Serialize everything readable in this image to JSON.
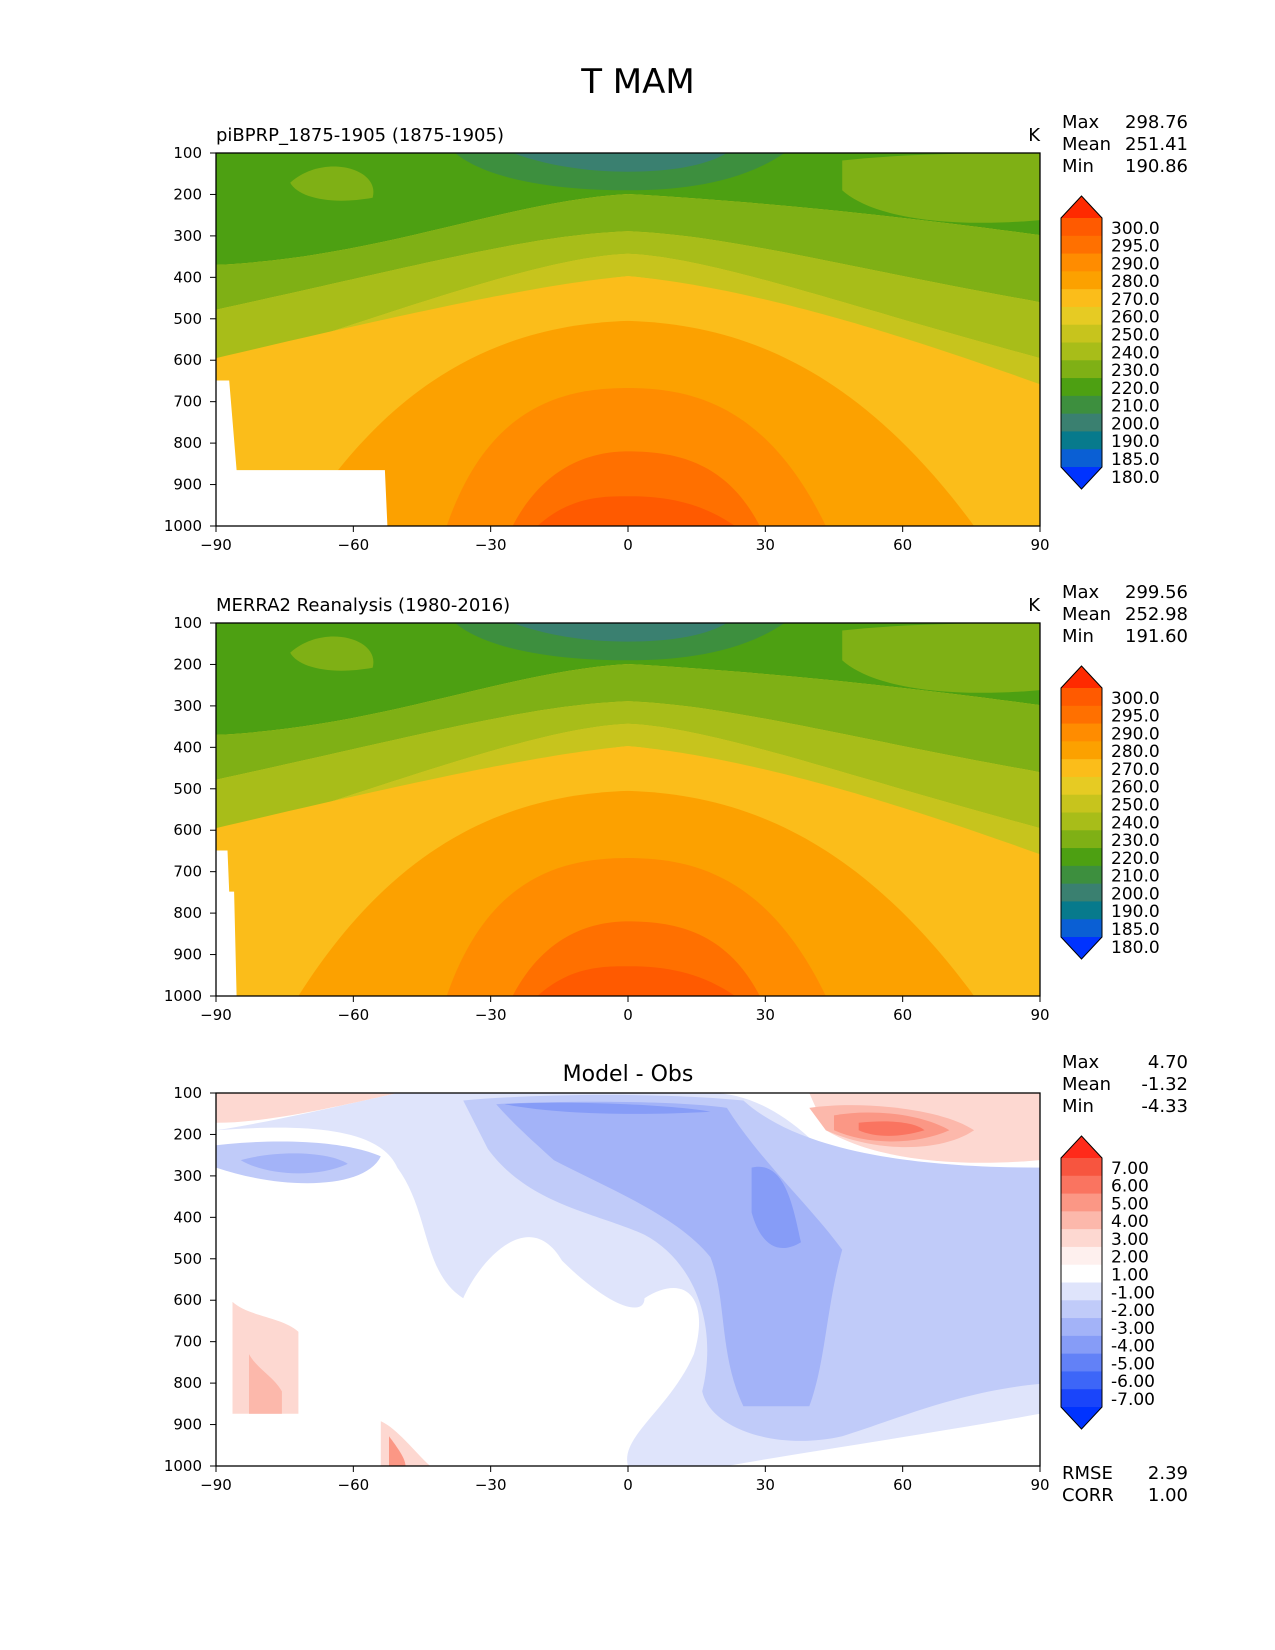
{
  "figure_title": "T MAM",
  "chart_data": [
    {
      "type": "contour",
      "title": "piBPRP_1875-1905 (1875-1905)",
      "units": "K",
      "xlim": [
        -90,
        90
      ],
      "ylim": [
        1000,
        100
      ],
      "xticks": [
        "−90",
        "−60",
        "−30",
        "0",
        "30",
        "60",
        "90"
      ],
      "yticks": [
        "100",
        "200",
        "300",
        "400",
        "500",
        "600",
        "700",
        "800",
        "900",
        "1000"
      ],
      "stats": [
        {
          "label": "Max",
          "value": "298.76"
        },
        {
          "label": "Mean",
          "value": "251.41"
        },
        {
          "label": "Min",
          "value": "190.86"
        }
      ],
      "colorbar": {
        "labels": [
          "300.0",
          "295.0",
          "290.0",
          "280.0",
          "270.0",
          "260.0",
          "250.0",
          "240.0",
          "230.0",
          "220.0",
          "210.0",
          "200.0",
          "190.0",
          "185.0",
          "180.0"
        ],
        "colors": [
          "#ff2a00",
          "#ff5a00",
          "#ff7000",
          "#ff8c00",
          "#fca100",
          "#fbbd1a",
          "#e6cb23",
          "#c7c41d",
          "#a8bd19",
          "#7fb015",
          "#4da012",
          "#3d8f3e",
          "#3a8070",
          "#077a8c",
          "#0a5fd4",
          "#0033ff"
        ],
        "ticks": [
          "300.0",
          "295.0",
          "290.0",
          "280.0",
          "270.0",
          "260.0",
          "250.0",
          "240.0",
          "230.0",
          "220.0",
          "210.0",
          "200.0",
          "190.0",
          "185.0",
          "180.0"
        ]
      },
      "profile": {
        "lat": [
          -90,
          -75,
          -60,
          -45,
          -30,
          -15,
          0,
          15,
          30,
          45,
          60,
          75,
          90
        ],
        "t1000": [
          null,
          null,
          null,
          273,
          280,
          291,
          296,
          291,
          284,
          278,
          268,
          257,
          253
        ],
        "t500": [
          240,
          241,
          247,
          254,
          259,
          264,
          266,
          264,
          259,
          254,
          247,
          241,
          238
        ],
        "t300": [
          217,
          218,
          221,
          225,
          231,
          235,
          236,
          235,
          231,
          225,
          221,
          218,
          216
        ],
        "t100": [
          215,
          222,
          219,
          212,
          203,
          197,
          194,
          197,
          203,
          212,
          220,
          222,
          222
        ]
      }
    },
    {
      "type": "contour",
      "title": "MERRA2 Reanalysis (1980-2016)",
      "units": "K",
      "xlim": [
        -90,
        90
      ],
      "ylim": [
        1000,
        100
      ],
      "xticks": [
        "−90",
        "−60",
        "−30",
        "0",
        "30",
        "60",
        "90"
      ],
      "yticks": [
        "100",
        "200",
        "300",
        "400",
        "500",
        "600",
        "700",
        "800",
        "900",
        "1000"
      ],
      "stats": [
        {
          "label": "Max",
          "value": "299.56"
        },
        {
          "label": "Mean",
          "value": "252.98"
        },
        {
          "label": "Min",
          "value": "191.60"
        }
      ],
      "colorbar": {
        "labels": [
          "300.0",
          "295.0",
          "290.0",
          "280.0",
          "270.0",
          "260.0",
          "250.0",
          "240.0",
          "230.0",
          "220.0",
          "210.0",
          "200.0",
          "190.0",
          "185.0",
          "180.0"
        ],
        "colors": [
          "#ff2a00",
          "#ff5a00",
          "#ff7000",
          "#ff8c00",
          "#fca100",
          "#fbbd1a",
          "#e6cb23",
          "#c7c41d",
          "#a8bd19",
          "#7fb015",
          "#4da012",
          "#3d8f3e",
          "#3a8070",
          "#077a8c",
          "#0a5fd4",
          "#0033ff"
        ],
        "ticks": [
          "300.0",
          "295.0",
          "290.0",
          "280.0",
          "270.0",
          "260.0",
          "250.0",
          "240.0",
          "230.0",
          "220.0",
          "210.0",
          "200.0",
          "190.0",
          "185.0",
          "180.0"
        ]
      }
    },
    {
      "type": "contour",
      "title": "Model - Obs",
      "xlim": [
        -90,
        90
      ],
      "ylim": [
        1000,
        100
      ],
      "xticks": [
        "−90",
        "−60",
        "−30",
        "0",
        "30",
        "60",
        "90"
      ],
      "yticks": [
        "100",
        "200",
        "300",
        "400",
        "500",
        "600",
        "700",
        "800",
        "900",
        "1000"
      ],
      "stats": [
        {
          "label": "Max",
          "value": "4.70"
        },
        {
          "label": "Mean",
          "value": "-1.32"
        },
        {
          "label": "Min",
          "value": "-4.33"
        }
      ],
      "footer_stats": [
        {
          "label": "RMSE",
          "value": "2.39"
        },
        {
          "label": "CORR",
          "value": "1.00"
        }
      ],
      "colorbar": {
        "labels": [
          "7.00",
          "6.00",
          "5.00",
          "4.00",
          "3.00",
          "2.00",
          "1.00",
          "-1.00",
          "-2.00",
          "-3.00",
          "-4.00",
          "-5.00",
          "-6.00",
          "-7.00"
        ],
        "colors": [
          "#ff2a1a",
          "#f7553f",
          "#fa7460",
          "#fb9785",
          "#fcb8ab",
          "#fdd8d1",
          "#fef0ee",
          "#ffffff",
          "#dfe4fb",
          "#c0cbf9",
          "#a3b3f8",
          "#869cf7",
          "#6281f7",
          "#3d66f8",
          "#1a45fa",
          "#0033ff"
        ],
        "ticks": [
          "7.00",
          "6.00",
          "5.00",
          "4.00",
          "3.00",
          "2.00",
          "1.00",
          "-1.00",
          "-2.00",
          "-3.00",
          "-4.00",
          "-5.00",
          "-6.00",
          "-7.00"
        ]
      }
    }
  ]
}
